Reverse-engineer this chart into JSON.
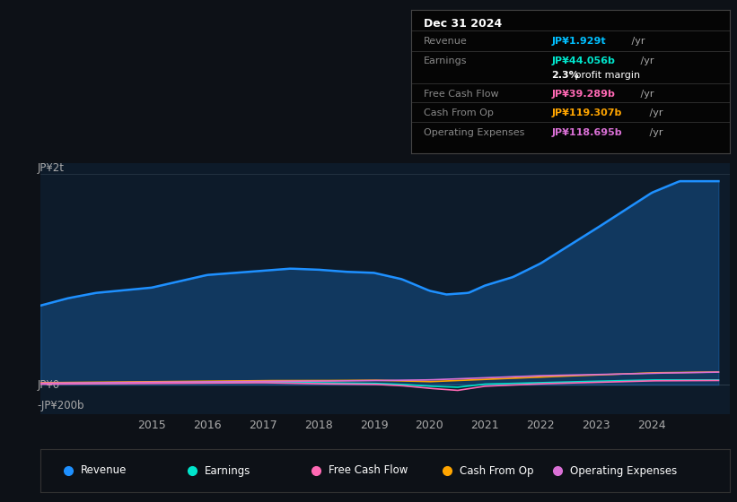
{
  "background_color": "#0d1117",
  "plot_bg_color": "#0d1b2a",
  "title": "Dec 31 2024",
  "info_box_rows": [
    {
      "label": "Revenue",
      "value": "JP¥1.929t",
      "color": "#00bfff"
    },
    {
      "label": "Earnings",
      "value": "JP¥44.056b",
      "color": "#00e5cc"
    },
    {
      "label": "",
      "value": "2.3% profit margin",
      "color": "#ffffff"
    },
    {
      "label": "Free Cash Flow",
      "value": "JP¥39.289b",
      "color": "#ff69b4"
    },
    {
      "label": "Cash From Op",
      "value": "JP¥119.307b",
      "color": "#ffa500"
    },
    {
      "label": "Operating Expenses",
      "value": "JP¥118.695b",
      "color": "#da70d6"
    }
  ],
  "y_label_top": "JP¥2t",
  "y_label_zero": "JP¥0",
  "y_label_neg": "-JP¥200b",
  "x_ticks": [
    2015,
    2016,
    2017,
    2018,
    2019,
    2020,
    2021,
    2022,
    2023,
    2024
  ],
  "ylim": [
    -280000000000.0,
    2100000000000.0
  ],
  "revenue_color": "#1e90ff",
  "earnings_color": "#00e5cc",
  "fcf_color": "#ff69b4",
  "cashfromop_color": "#ffa500",
  "opex_color": "#da70d6",
  "legend": [
    {
      "label": "Revenue",
      "color": "#1e90ff"
    },
    {
      "label": "Earnings",
      "color": "#00e5cc"
    },
    {
      "label": "Free Cash Flow",
      "color": "#ff69b4"
    },
    {
      "label": "Cash From Op",
      "color": "#ffa500"
    },
    {
      "label": "Operating Expenses",
      "color": "#da70d6"
    }
  ]
}
